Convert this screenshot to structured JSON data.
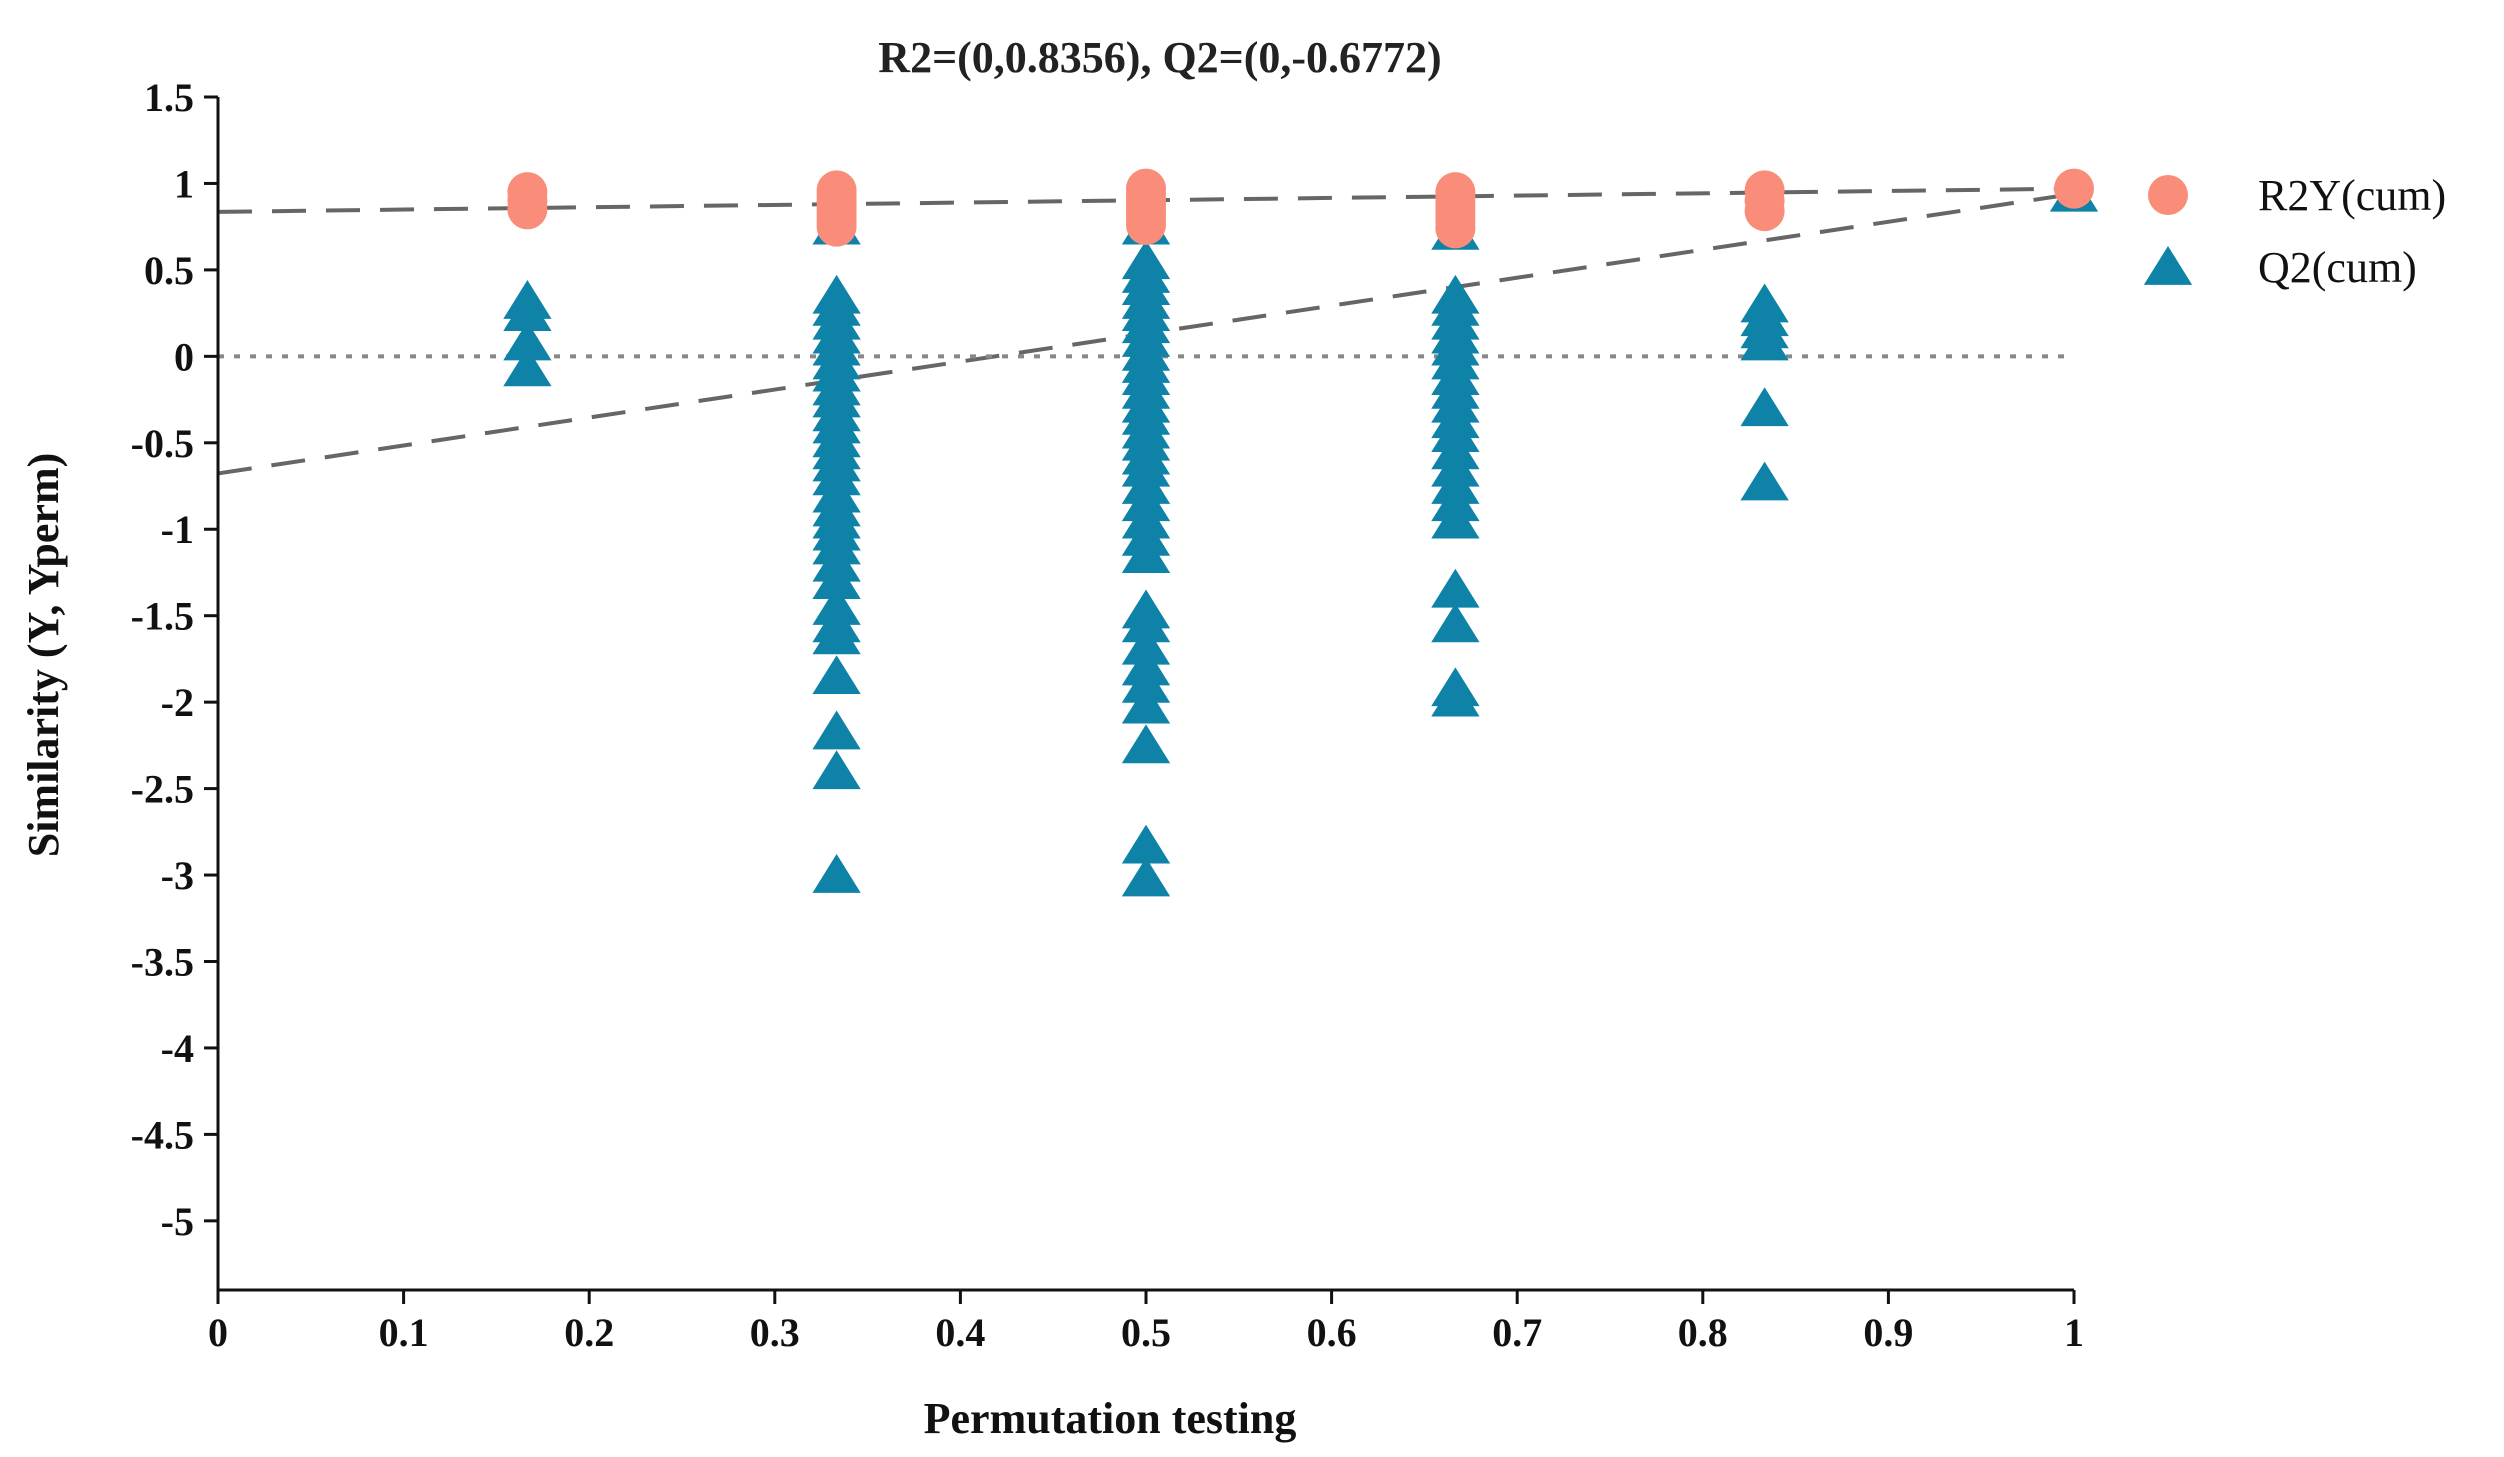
{
  "chart_data": {
    "type": "scatter",
    "title": "R2=(0,0.8356), Q2=(0,-0.6772)",
    "xlabel": "Permutation testing",
    "ylabel": "Similarity (Y, Yperm)",
    "xlim": [
      0,
      1
    ],
    "ylim": [
      -5.4,
      1.5
    ],
    "x_ticks": [
      0,
      0.1,
      0.2,
      0.3,
      0.4,
      0.5,
      0.6,
      0.7,
      0.8,
      0.9,
      1
    ],
    "x_tick_labels": [
      "0",
      "0.1",
      "0.2",
      "0.3",
      "0.4",
      "0.5",
      "0.6",
      "0.7",
      "0.8",
      "0.9",
      "1"
    ],
    "y_ticks": [
      1.5,
      1,
      0.5,
      0,
      -0.5,
      -1,
      -1.5,
      -2,
      -2.5,
      -3,
      -3.5,
      -4,
      -4.5,
      -5
    ],
    "y_tick_labels": [
      "1.5",
      "1",
      "0.5",
      "0",
      "-0.5",
      "-1",
      "-1.5",
      "-2",
      "-2.5",
      "-3",
      "-3.5",
      "-4",
      "-4.5",
      "-5"
    ],
    "legend_position": "top-right",
    "series": [
      {
        "name": "R2Y(cum)",
        "marker": "circle",
        "color": "#fa8d7a",
        "points": [
          [
            0.1667,
            0.95
          ],
          [
            0.1667,
            0.9
          ],
          [
            0.1667,
            0.85
          ],
          [
            0.3333,
            0.96
          ],
          [
            0.3333,
            0.93
          ],
          [
            0.3333,
            0.9
          ],
          [
            0.3333,
            0.87
          ],
          [
            0.3333,
            0.84
          ],
          [
            0.3333,
            0.81
          ],
          [
            0.3333,
            0.78
          ],
          [
            0.3333,
            0.75
          ],
          [
            0.5,
            0.97
          ],
          [
            0.5,
            0.94
          ],
          [
            0.5,
            0.91
          ],
          [
            0.5,
            0.88
          ],
          [
            0.5,
            0.85
          ],
          [
            0.5,
            0.82
          ],
          [
            0.5,
            0.79
          ],
          [
            0.5,
            0.76
          ],
          [
            0.6667,
            0.95
          ],
          [
            0.6667,
            0.92
          ],
          [
            0.6667,
            0.89
          ],
          [
            0.6667,
            0.86
          ],
          [
            0.6667,
            0.83
          ],
          [
            0.6667,
            0.8
          ],
          [
            0.6667,
            0.77
          ],
          [
            0.6667,
            0.74
          ],
          [
            0.8333,
            0.96
          ],
          [
            0.8333,
            0.9
          ],
          [
            0.8333,
            0.84
          ],
          [
            1,
            0.97
          ]
        ]
      },
      {
        "name": "Q2(cum)",
        "marker": "triangle",
        "color": "#0f82a8",
        "points": [
          [
            0.1667,
            0.32
          ],
          [
            0.1667,
            0.25
          ],
          [
            0.1667,
            0.08
          ],
          [
            0.1667,
            -0.07
          ],
          [
            0.3333,
            0.75
          ],
          [
            0.3333,
            0.35
          ],
          [
            0.3333,
            0.28
          ],
          [
            0.3333,
            0.2
          ],
          [
            0.3333,
            0.12
          ],
          [
            0.3333,
            0.05
          ],
          [
            0.3333,
            -0.03
          ],
          [
            0.3333,
            -0.1
          ],
          [
            0.3333,
            -0.18
          ],
          [
            0.3333,
            -0.25
          ],
          [
            0.3333,
            -0.33
          ],
          [
            0.3333,
            -0.4
          ],
          [
            0.3333,
            -0.48
          ],
          [
            0.3333,
            -0.55
          ],
          [
            0.3333,
            -0.62
          ],
          [
            0.3333,
            -0.7
          ],
          [
            0.3333,
            -0.8
          ],
          [
            0.3333,
            -0.88
          ],
          [
            0.3333,
            -0.95
          ],
          [
            0.3333,
            -1.02
          ],
          [
            0.3333,
            -1.1
          ],
          [
            0.3333,
            -1.2
          ],
          [
            0.3333,
            -1.3
          ],
          [
            0.3333,
            -1.45
          ],
          [
            0.3333,
            -1.55
          ],
          [
            0.3333,
            -1.62
          ],
          [
            0.3333,
            -1.85
          ],
          [
            0.3333,
            -2.17
          ],
          [
            0.3333,
            -2.4
          ],
          [
            0.3333,
            -3.0
          ],
          [
            0.5,
            0.75
          ],
          [
            0.5,
            0.55
          ],
          [
            0.5,
            0.47
          ],
          [
            0.5,
            0.4
          ],
          [
            0.5,
            0.32
          ],
          [
            0.5,
            0.25
          ],
          [
            0.5,
            0.18
          ],
          [
            0.5,
            0.1
          ],
          [
            0.5,
            0.02
          ],
          [
            0.5,
            -0.05
          ],
          [
            0.5,
            -0.12
          ],
          [
            0.5,
            -0.2
          ],
          [
            0.5,
            -0.28
          ],
          [
            0.5,
            -0.35
          ],
          [
            0.5,
            -0.43
          ],
          [
            0.5,
            -0.5
          ],
          [
            0.5,
            -0.58
          ],
          [
            0.5,
            -0.65
          ],
          [
            0.5,
            -0.75
          ],
          [
            0.5,
            -0.85
          ],
          [
            0.5,
            -0.95
          ],
          [
            0.5,
            -1.05
          ],
          [
            0.5,
            -1.15
          ],
          [
            0.5,
            -1.47
          ],
          [
            0.5,
            -1.55
          ],
          [
            0.5,
            -1.68
          ],
          [
            0.5,
            -1.8
          ],
          [
            0.5,
            -1.9
          ],
          [
            0.5,
            -2.02
          ],
          [
            0.5,
            -2.25
          ],
          [
            0.5,
            -2.83
          ],
          [
            0.5,
            -3.02
          ],
          [
            0.6667,
            0.72
          ],
          [
            0.6667,
            0.35
          ],
          [
            0.6667,
            0.28
          ],
          [
            0.6667,
            0.2
          ],
          [
            0.6667,
            0.12
          ],
          [
            0.6667,
            0.05
          ],
          [
            0.6667,
            -0.03
          ],
          [
            0.6667,
            -0.12
          ],
          [
            0.6667,
            -0.2
          ],
          [
            0.6667,
            -0.28
          ],
          [
            0.6667,
            -0.37
          ],
          [
            0.6667,
            -0.45
          ],
          [
            0.6667,
            -0.55
          ],
          [
            0.6667,
            -0.65
          ],
          [
            0.6667,
            -0.75
          ],
          [
            0.6667,
            -0.85
          ],
          [
            0.6667,
            -0.95
          ],
          [
            0.6667,
            -1.35
          ],
          [
            0.6667,
            -1.55
          ],
          [
            0.6667,
            -1.92
          ],
          [
            0.6667,
            -1.98
          ],
          [
            0.8333,
            0.3
          ],
          [
            0.8333,
            0.22
          ],
          [
            0.8333,
            0.15
          ],
          [
            0.8333,
            0.08
          ],
          [
            0.8333,
            -0.3
          ],
          [
            0.8333,
            -0.73
          ],
          [
            1,
            0.94
          ]
        ]
      }
    ],
    "reference_lines": [
      {
        "name": "R2 regression line",
        "style": "dashed",
        "color": "#666666",
        "from": [
          0,
          0.8356
        ],
        "to": [
          1,
          0.97
        ]
      },
      {
        "name": "Q2 regression line",
        "style": "dashed",
        "color": "#666666",
        "from": [
          0,
          -0.6772
        ],
        "to": [
          1,
          0.94
        ]
      },
      {
        "name": "zero line",
        "style": "dotted",
        "color": "#888888",
        "from": [
          0,
          0
        ],
        "to": [
          1,
          0
        ]
      }
    ]
  }
}
